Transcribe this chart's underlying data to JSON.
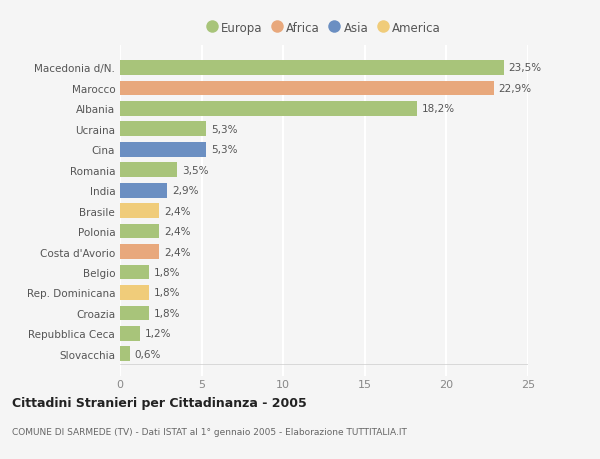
{
  "categories": [
    "Macedonia d/N.",
    "Marocco",
    "Albania",
    "Ucraina",
    "Cina",
    "Romania",
    "India",
    "Brasile",
    "Polonia",
    "Costa d'Avorio",
    "Belgio",
    "Rep. Dominicana",
    "Croazia",
    "Repubblica Ceca",
    "Slovacchia"
  ],
  "values": [
    23.5,
    22.9,
    18.2,
    5.3,
    5.3,
    3.5,
    2.9,
    2.4,
    2.4,
    2.4,
    1.8,
    1.8,
    1.8,
    1.2,
    0.6
  ],
  "labels": [
    "23,5%",
    "22,9%",
    "18,2%",
    "5,3%",
    "5,3%",
    "3,5%",
    "2,9%",
    "2,4%",
    "2,4%",
    "2,4%",
    "1,8%",
    "1,8%",
    "1,8%",
    "1,2%",
    "0,6%"
  ],
  "colors": [
    "#a8c47a",
    "#e8a87c",
    "#a8c47a",
    "#a8c47a",
    "#6b8fc2",
    "#a8c47a",
    "#6b8fc2",
    "#f0cc7a",
    "#a8c47a",
    "#e8a87c",
    "#a8c47a",
    "#f0cc7a",
    "#a8c47a",
    "#a8c47a",
    "#a8c47a"
  ],
  "legend_labels": [
    "Europa",
    "Africa",
    "Asia",
    "America"
  ],
  "legend_colors": [
    "#a8c47a",
    "#e8a87c",
    "#6b8fc2",
    "#f0cc7a"
  ],
  "title": "Cittadini Stranieri per Cittadinanza - 2005",
  "subtitle": "COMUNE DI SARMEDE (TV) - Dati ISTAT al 1° gennaio 2005 - Elaborazione TUTTITALIA.IT",
  "xlim": [
    0,
    25
  ],
  "xticks": [
    0,
    5,
    10,
    15,
    20,
    25
  ],
  "background_color": "#f5f5f5",
  "grid_color": "#ffffff",
  "bar_height": 0.72
}
